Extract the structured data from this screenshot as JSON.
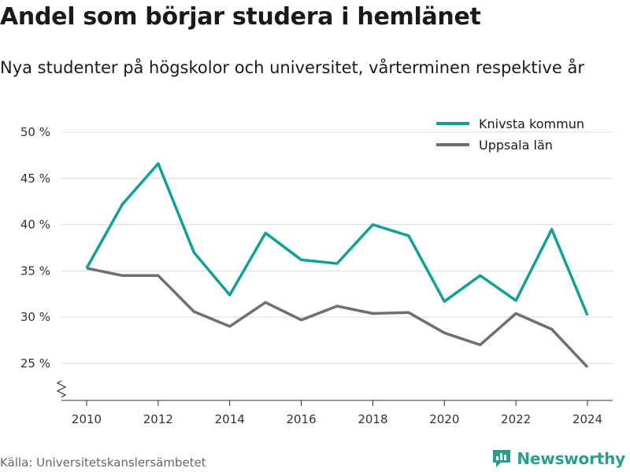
{
  "title": "Andel som börjar studera i hemlänet",
  "subtitle": "Nya studenter på högskolor och universitet, vårterminen respektive år",
  "source": "Källa: Universitetskanslersämbetet",
  "brand": {
    "name": "Newsworthy",
    "logo_icon": "newsworthy-logo-icon"
  },
  "chart_data": {
    "type": "line",
    "x": [
      2010,
      2011,
      2012,
      2013,
      2014,
      2015,
      2016,
      2017,
      2018,
      2019,
      2020,
      2021,
      2022,
      2023,
      2024
    ],
    "series": [
      {
        "name": "Knivsta kommun",
        "color": "#0fa294",
        "values": [
          35.3,
          42.2,
          46.6,
          37.0,
          32.4,
          39.1,
          36.2,
          35.8,
          40.0,
          38.8,
          31.7,
          34.5,
          31.8,
          39.5,
          30.2
        ]
      },
      {
        "name": "Uppsala län",
        "color": "#6e6e74",
        "values": [
          35.3,
          34.5,
          34.5,
          30.6,
          29.0,
          31.6,
          29.7,
          31.2,
          30.4,
          30.5,
          28.3,
          27.0,
          30.4,
          28.7,
          24.6
        ]
      }
    ],
    "xticks": [
      2010,
      2012,
      2014,
      2016,
      2018,
      2020,
      2022,
      2024
    ],
    "xtick_labels": [
      "2010",
      "2012",
      "2014",
      "2016",
      "2018",
      "2020",
      "2022",
      "2024"
    ],
    "yticks": [
      25,
      30,
      35,
      40,
      45,
      50
    ],
    "ytick_labels": [
      "25 %",
      "30 %",
      "35 %",
      "40 %",
      "45 %",
      "50 %"
    ],
    "ylim": [
      21,
      50
    ],
    "xlim": [
      2010,
      2024
    ],
    "grid": true,
    "axis_break": true,
    "legend_position": "top-right"
  }
}
